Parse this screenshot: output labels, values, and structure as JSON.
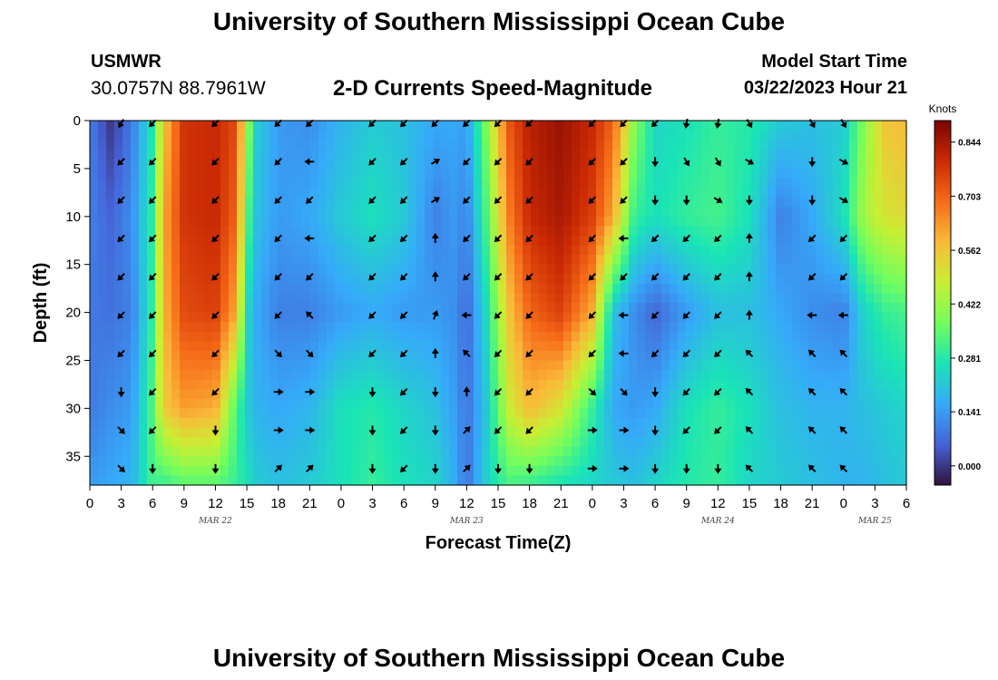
{
  "header": {
    "title": "University of Southern Mississippi Ocean Cube",
    "station": "USMWR",
    "coords": "30.0757N  88.7961W",
    "subtitle": "2-D Currents Speed-Magnitude",
    "model_label": "Model Start Time",
    "model_time": "03/22/2023 Hour 21"
  },
  "footer": {
    "title": "University of Southern Mississippi Ocean Cube"
  },
  "chart_data": {
    "type": "heatmap",
    "title": "2-D Currents Speed-Magnitude",
    "xlabel": "Forecast Time(Z)",
    "ylabel": "Depth (ft)",
    "x_hours_range": [
      0,
      78
    ],
    "x_tick_labels": [
      "0",
      "3",
      "6",
      "9",
      "12",
      "15",
      "18",
      "21",
      "0",
      "3",
      "6",
      "9",
      "12",
      "15",
      "18",
      "21",
      "0",
      "3",
      "6",
      "9",
      "12",
      "15",
      "18",
      "21",
      "0",
      "3",
      "6"
    ],
    "date_labels": [
      {
        "label": "MAR 22",
        "hour": 12
      },
      {
        "label": "MAR 23",
        "hour": 36
      },
      {
        "label": "MAR 24",
        "hour": 60
      },
      {
        "label": "MAR 25",
        "hour": 75
      }
    ],
    "ylim": [
      0,
      38
    ],
    "y_ticks": [
      0,
      5,
      10,
      15,
      20,
      25,
      30,
      35
    ],
    "colorbar": {
      "label": "Knots",
      "min": -0.05,
      "max": 0.9,
      "ticks": [
        "0.844",
        "0.703",
        "0.562",
        "0.422",
        "0.281",
        "0.141",
        "0.000"
      ],
      "tick_values": [
        0.844,
        0.703,
        0.562,
        0.422,
        0.281,
        0.141,
        0.0
      ],
      "colors": [
        "#30123b",
        "#4662d7",
        "#36aaf9",
        "#1ae4b6",
        "#72fe5e",
        "#c8ef34",
        "#faba39",
        "#f66b19",
        "#cb2a04",
        "#7a0403"
      ]
    },
    "speed_columns": [
      {
        "hour": 0,
        "depths": [
          0,
          10,
          20,
          30,
          38
        ],
        "speed": [
          0.1,
          0.1,
          0.09,
          0.09,
          0.14
        ]
      },
      {
        "hour": 2,
        "depths": [
          0,
          10,
          20,
          30,
          38
        ],
        "speed": [
          0.0,
          0.06,
          0.08,
          0.12,
          0.16
        ]
      },
      {
        "hour": 4,
        "depths": [
          0,
          10,
          20,
          30,
          38
        ],
        "speed": [
          0.09,
          0.12,
          0.1,
          0.14,
          0.18
        ]
      },
      {
        "hour": 6,
        "depths": [
          0,
          10,
          20,
          30,
          38
        ],
        "speed": [
          0.28,
          0.3,
          0.3,
          0.34,
          0.32
        ]
      },
      {
        "hour": 7,
        "depths": [
          0,
          10,
          20,
          30,
          38
        ],
        "speed": [
          0.55,
          0.6,
          0.58,
          0.55,
          0.3
        ]
      },
      {
        "hour": 9,
        "depths": [
          0,
          10,
          20,
          30,
          38
        ],
        "speed": [
          0.78,
          0.78,
          0.74,
          0.62,
          0.34
        ]
      },
      {
        "hour": 12,
        "depths": [
          0,
          10,
          20,
          30,
          38
        ],
        "speed": [
          0.8,
          0.8,
          0.76,
          0.6,
          0.34
        ]
      },
      {
        "hour": 14,
        "depths": [
          0,
          10,
          20,
          30,
          38
        ],
        "speed": [
          0.74,
          0.7,
          0.6,
          0.32,
          0.3
        ]
      },
      {
        "hour": 15,
        "depths": [
          0,
          10,
          20,
          30,
          38
        ],
        "speed": [
          0.42,
          0.34,
          0.24,
          0.22,
          0.26
        ]
      },
      {
        "hour": 16,
        "depths": [
          0,
          10,
          20,
          30,
          38
        ],
        "speed": [
          0.22,
          0.2,
          0.16,
          0.18,
          0.22
        ]
      },
      {
        "hour": 18,
        "depths": [
          0,
          10,
          20,
          30,
          38
        ],
        "speed": [
          0.14,
          0.14,
          0.1,
          0.16,
          0.2
        ]
      },
      {
        "hour": 21,
        "depths": [
          0,
          10,
          20,
          30,
          38
        ],
        "speed": [
          0.12,
          0.16,
          0.1,
          0.18,
          0.22
        ]
      },
      {
        "hour": 24,
        "depths": [
          0,
          10,
          20,
          30,
          38
        ],
        "speed": [
          0.18,
          0.22,
          0.14,
          0.26,
          0.26
        ]
      },
      {
        "hour": 27,
        "depths": [
          0,
          10,
          20,
          30,
          38
        ],
        "speed": [
          0.22,
          0.26,
          0.16,
          0.28,
          0.3
        ]
      },
      {
        "hour": 30,
        "depths": [
          0,
          10,
          20,
          30,
          38
        ],
        "speed": [
          0.2,
          0.22,
          0.14,
          0.24,
          0.26
        ]
      },
      {
        "hour": 33,
        "depths": [
          0,
          10,
          20,
          30,
          38
        ],
        "speed": [
          0.16,
          0.1,
          0.14,
          0.2,
          0.24
        ]
      },
      {
        "hour": 35,
        "depths": [
          0,
          10,
          20,
          30,
          38
        ],
        "speed": [
          0.16,
          0.14,
          0.12,
          0.14,
          0.16
        ]
      },
      {
        "hour": 36,
        "depths": [
          0,
          10,
          20,
          30,
          38
        ],
        "speed": [
          0.14,
          0.1,
          0.06,
          0.08,
          0.08
        ]
      },
      {
        "hour": 38,
        "depths": [
          0,
          10,
          20,
          30,
          38
        ],
        "speed": [
          0.4,
          0.34,
          0.26,
          0.22,
          0.24
        ]
      },
      {
        "hour": 40,
        "depths": [
          0,
          10,
          20,
          30,
          38
        ],
        "speed": [
          0.72,
          0.66,
          0.56,
          0.48,
          0.32
        ]
      },
      {
        "hour": 42,
        "depths": [
          0,
          10,
          20,
          30,
          38
        ],
        "speed": [
          0.82,
          0.8,
          0.7,
          0.58,
          0.3
        ]
      },
      {
        "hour": 45,
        "depths": [
          0,
          10,
          20,
          30,
          38
        ],
        "speed": [
          0.86,
          0.84,
          0.76,
          0.5,
          0.26
        ]
      },
      {
        "hour": 48,
        "depths": [
          0,
          10,
          20,
          30,
          38
        ],
        "speed": [
          0.8,
          0.76,
          0.6,
          0.3,
          0.24
        ]
      },
      {
        "hour": 50,
        "depths": [
          0,
          10,
          20,
          30,
          38
        ],
        "speed": [
          0.7,
          0.6,
          0.2,
          0.16,
          0.22
        ]
      },
      {
        "hour": 52,
        "depths": [
          0,
          10,
          20,
          30,
          38
        ],
        "speed": [
          0.4,
          0.3,
          0.12,
          0.14,
          0.2
        ]
      },
      {
        "hour": 54,
        "depths": [
          0,
          10,
          20,
          30,
          38
        ],
        "speed": [
          0.24,
          0.26,
          0.06,
          0.16,
          0.24
        ]
      },
      {
        "hour": 57,
        "depths": [
          0,
          10,
          20,
          30,
          38
        ],
        "speed": [
          0.26,
          0.3,
          0.14,
          0.26,
          0.28
        ]
      },
      {
        "hour": 60,
        "depths": [
          0,
          10,
          20,
          30,
          38
        ],
        "speed": [
          0.3,
          0.32,
          0.2,
          0.3,
          0.3
        ]
      },
      {
        "hour": 63,
        "depths": [
          0,
          10,
          20,
          30,
          38
        ],
        "speed": [
          0.28,
          0.26,
          0.2,
          0.26,
          0.24
        ]
      },
      {
        "hour": 66,
        "depths": [
          0,
          10,
          20,
          30,
          38
        ],
        "speed": [
          0.22,
          0.1,
          0.16,
          0.2,
          0.22
        ]
      },
      {
        "hour": 69,
        "depths": [
          0,
          10,
          20,
          30,
          38
        ],
        "speed": [
          0.2,
          0.16,
          0.12,
          0.18,
          0.2
        ]
      },
      {
        "hour": 72,
        "depths": [
          0,
          10,
          20,
          30,
          38
        ],
        "speed": [
          0.22,
          0.26,
          0.1,
          0.18,
          0.18
        ]
      },
      {
        "hour": 74,
        "depths": [
          0,
          10,
          20,
          30,
          38
        ],
        "speed": [
          0.4,
          0.44,
          0.24,
          0.2,
          0.18
        ]
      },
      {
        "hour": 76,
        "depths": [
          0,
          10,
          20,
          30,
          38
        ],
        "speed": [
          0.56,
          0.5,
          0.3,
          0.22,
          0.2
        ]
      },
      {
        "hour": 78,
        "depths": [
          0,
          10,
          20,
          30,
          38
        ],
        "speed": [
          0.58,
          0.52,
          0.32,
          0.24,
          0.22
        ]
      }
    ],
    "arrow_depths": [
      0,
      4,
      8,
      12,
      16,
      20,
      24,
      28,
      32,
      36
    ],
    "arrow_hours": [
      3,
      6,
      12,
      18,
      21,
      27,
      30,
      33,
      36,
      39,
      42,
      48,
      51,
      54,
      57,
      60,
      63,
      69,
      72
    ],
    "arrow_directions_deg": [
      [
        120,
        135,
        135,
        135,
        135,
        135,
        135,
        135,
        135,
        135,
        135,
        135,
        135,
        135,
        100,
        100,
        60,
        60,
        60
      ],
      [
        135,
        135,
        135,
        135,
        180,
        135,
        135,
        330,
        135,
        135,
        135,
        135,
        135,
        90,
        60,
        60,
        30,
        90,
        30
      ],
      [
        135,
        135,
        135,
        135,
        135,
        135,
        135,
        330,
        135,
        135,
        135,
        135,
        135,
        90,
        90,
        30,
        90,
        90,
        30
      ],
      [
        135,
        135,
        135,
        135,
        180,
        135,
        135,
        270,
        135,
        135,
        135,
        135,
        180,
        135,
        135,
        135,
        270,
        135,
        135
      ],
      [
        135,
        135,
        135,
        135,
        135,
        135,
        135,
        270,
        135,
        135,
        135,
        135,
        135,
        135,
        135,
        135,
        270,
        135,
        135
      ],
      [
        135,
        135,
        135,
        135,
        225,
        135,
        135,
        290,
        180,
        135,
        135,
        135,
        180,
        135,
        135,
        135,
        270,
        180,
        180
      ],
      [
        135,
        135,
        135,
        45,
        45,
        135,
        135,
        270,
        225,
        135,
        135,
        135,
        180,
        135,
        135,
        135,
        225,
        225,
        225
      ],
      [
        90,
        135,
        135,
        0,
        0,
        90,
        135,
        90,
        270,
        135,
        135,
        45,
        45,
        90,
        135,
        135,
        225,
        225,
        225
      ],
      [
        45,
        135,
        90,
        0,
        0,
        90,
        135,
        90,
        315,
        135,
        135,
        0,
        0,
        90,
        135,
        135,
        225,
        225,
        225
      ],
      [
        45,
        90,
        90,
        315,
        315,
        90,
        135,
        90,
        315,
        90,
        90,
        0,
        0,
        90,
        90,
        90,
        225,
        225,
        225
      ]
    ]
  }
}
